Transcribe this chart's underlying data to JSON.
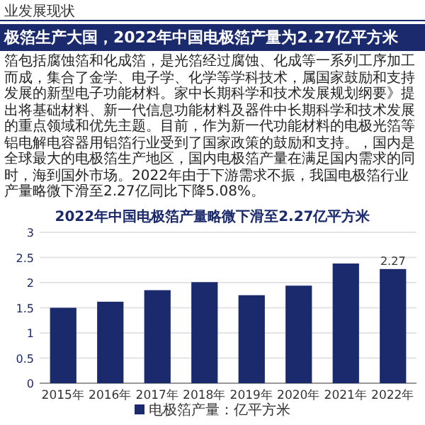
{
  "chart_data": {
    "type": "bar",
    "subtitle": "业发展现状",
    "title": "极箔生产大国，2022年中国电极箔产量为2.27亿平方米",
    "annotations": [
      "箔包括腐蚀箔和化成箔，是光箔经过腐蚀、化成等一系列工序加工而成，集合了金",
      "学、电子学、化学等学科技术，属国家鼓励和支持发展的新型电子功能材料。",
      "家中长期科学和技术发展规划纲要》提出将基础材料、新一代信息功能材料及器件",
      "中长期科学和技术发展的重点领域和优先主题。目前，作为新一代功能材料的电极",
      "光箔等铝电解电容器用铝箔行业受到了国家政策的鼓励和支持。",
      "，国内是全球最大的电极箔生产地区，国内电极箔产量在满足国内需求的同时，海",
      "到国外市场。2022年由于下游需求不振，我国电极箔行业产量略微下滑至2.27亿",
      "同比下降5.08%。",
      "2022年中国电极箔产量略微下滑至2.27亿平方米"
    ],
    "categories": [
      "2015年",
      "2016年",
      "2017年",
      "2018年",
      "2019年",
      "2020年",
      "2021年",
      "2022年"
    ],
    "series": [
      {
        "name": "电极箔产量：亿平方米",
        "color": "#1a2a6c",
        "values": [
          1.5,
          1.62,
          1.85,
          2.01,
          1.75,
          1.94,
          2.38,
          2.27
        ],
        "value_labels": [
          null,
          null,
          null,
          null,
          null,
          null,
          null,
          "2.27"
        ]
      }
    ],
    "ylim": [
      0,
      3
    ],
    "yticks": [
      0,
      0.5,
      1,
      1.5,
      2,
      2.5,
      3
    ],
    "grid": "y",
    "legend": "bottom"
  }
}
